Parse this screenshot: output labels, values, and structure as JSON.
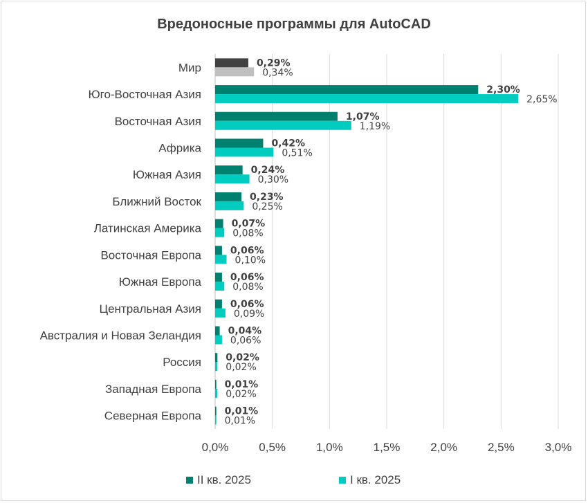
{
  "chart_data": {
    "type": "bar",
    "orientation": "horizontal",
    "title": "Вредоносные программы для AutoCAD",
    "categories": [
      "Мир",
      "Юго-Восточная Азия",
      "Восточная Азия",
      "Африка",
      "Южная Азия",
      "Ближний Восток",
      "Латинская Америка",
      "Восточная Европа",
      "Южная Европа",
      "Центральная Азия",
      "Австралия и Новая Зеландия",
      "Россия",
      "Западная Европа",
      "Северная Европа"
    ],
    "series": [
      {
        "name": "II кв. 2025",
        "color": "#00806e",
        "world_color": "#404040",
        "values": [
          0.29,
          2.3,
          1.07,
          0.42,
          0.24,
          0.23,
          0.07,
          0.06,
          0.06,
          0.06,
          0.04,
          0.02,
          0.01,
          0.01
        ],
        "labels": [
          "0,29%",
          "2,30%",
          "1,07%",
          "0,42%",
          "0,24%",
          "0,23%",
          "0,07%",
          "0,06%",
          "0,06%",
          "0,06%",
          "0,04%",
          "0,02%",
          "0,01%",
          "0,01%"
        ]
      },
      {
        "name": "I кв. 2025",
        "color": "#00ccbf",
        "world_color": "#bfbfbf",
        "values": [
          0.34,
          2.65,
          1.19,
          0.51,
          0.3,
          0.25,
          0.08,
          0.1,
          0.08,
          0.09,
          0.06,
          0.02,
          0.02,
          0.01
        ],
        "labels": [
          "0,34%",
          "2,65%",
          "1,19%",
          "0,51%",
          "0,30%",
          "0,25%",
          "0,08%",
          "0,10%",
          "0,08%",
          "0,09%",
          "0,06%",
          "0,02%",
          "0,02%",
          "0,01%"
        ]
      }
    ],
    "x_ticks": [
      0,
      0.5,
      1.0,
      1.5,
      2.0,
      2.5,
      3.0
    ],
    "x_tick_labels": [
      "0,0%",
      "0,5%",
      "1,0%",
      "1,5%",
      "2,0%",
      "2,5%",
      "3,0%"
    ],
    "xlim": [
      0,
      3.0
    ],
    "xlabel": "",
    "ylabel": "",
    "grid": true,
    "legend_position": "bottom"
  }
}
